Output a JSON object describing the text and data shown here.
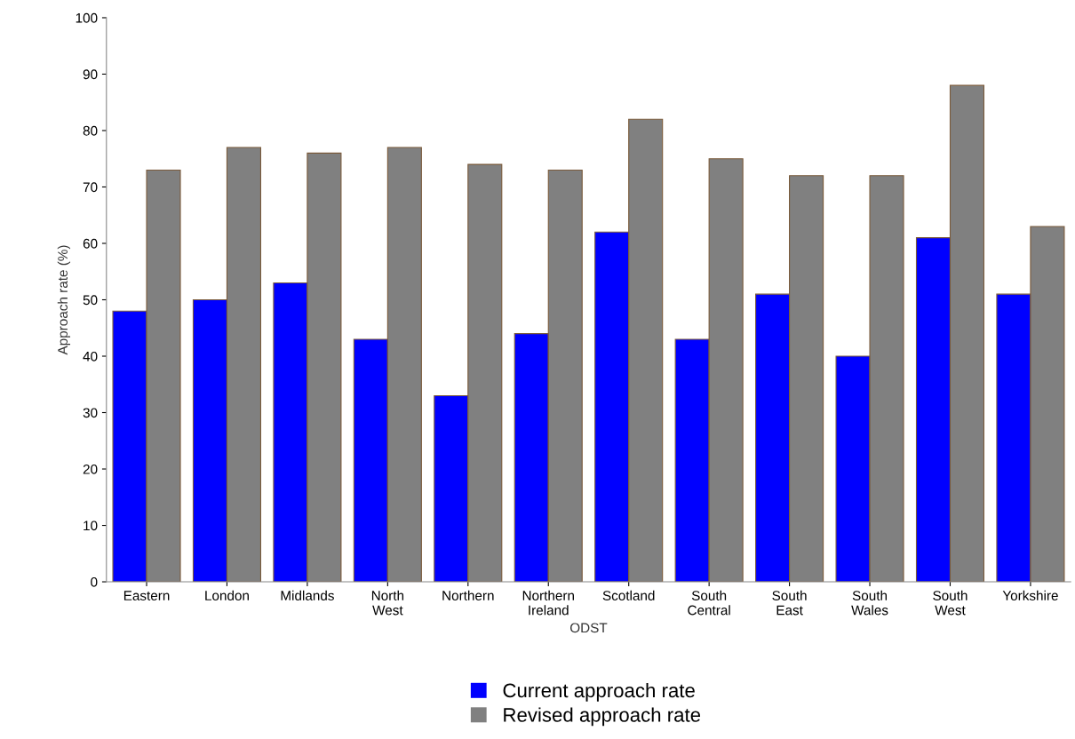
{
  "chart_data": {
    "type": "bar",
    "xlabel": "ODST",
    "ylabel": "Approach rate (%)",
    "categories": [
      "Eastern",
      "London",
      "Midlands",
      "North\nWest",
      "Northern",
      "Northern\nIreland",
      "Scotland",
      "South\nCentral",
      "South\nEast",
      "South\nWales",
      "South\nWest",
      "Yorkshire"
    ],
    "series": [
      {
        "name": "Current approach rate",
        "color": "#0000ff",
        "values": [
          48,
          50,
          53,
          43,
          33,
          44,
          62,
          43,
          51,
          40,
          61,
          51
        ]
      },
      {
        "name": "Revised approach rate",
        "color": "#808080",
        "values": [
          73,
          77,
          76,
          77,
          74,
          73,
          82,
          75,
          72,
          72,
          88,
          63
        ]
      }
    ],
    "ylim": [
      0,
      100
    ],
    "yticks": [
      0,
      10,
      20,
      30,
      40,
      50,
      60,
      70,
      80,
      90,
      100
    ],
    "grid": false,
    "legend": "bottom"
  }
}
